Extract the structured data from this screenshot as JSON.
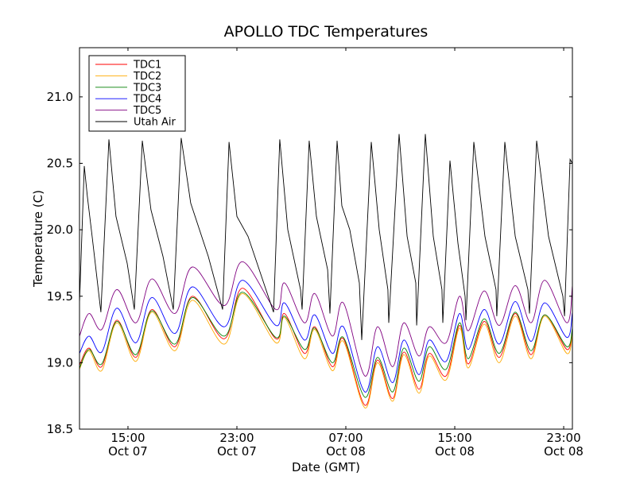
{
  "chart_data": {
    "type": "line",
    "title": "APOLLO TDC Temperatures",
    "xlabel": "Date (GMT)",
    "ylabel": "Temperature (C)",
    "x_units": "hours since Oct 07 00:00 GMT",
    "xlim": [
      11.44,
      47.64
    ],
    "ylim": [
      18.5,
      21.37
    ],
    "grid": false,
    "legend_position": "top-left",
    "yticks": [
      18.5,
      19.0,
      19.5,
      20.0,
      20.5,
      21.0
    ],
    "ytick_labels": [
      "18.5",
      "19.0",
      "19.5",
      "20.0",
      "20.5",
      "21.0"
    ],
    "xticks": [
      15,
      23,
      31,
      39,
      47
    ],
    "xtick_labels": [
      {
        "time": "15:00",
        "date": "Oct 07"
      },
      {
        "time": "23:00",
        "date": "Oct 07"
      },
      {
        "time": "07:00",
        "date": "Oct 08"
      },
      {
        "time": "15:00",
        "date": "Oct 08"
      },
      {
        "time": "23:00",
        "date": "Oct 08"
      }
    ],
    "tdc_x": [
      11.44,
      12.14,
      13.07,
      14.18,
      15.58,
      16.75,
      18.45,
      19.73,
      22.07,
      23.41,
      25.86,
      26.5,
      27.96,
      28.72,
      30.01,
      30.82,
      32.4,
      33.33,
      34.44,
      35.26,
      36.37,
      37.13,
      38.36,
      39.35,
      39.99,
      41.16,
      42.27,
      43.44,
      44.6,
      45.6,
      47.23,
      47.64
    ],
    "series": [
      {
        "name": "TDC1",
        "color": "#ff0000",
        "smooth": true,
        "values": [
          18.98,
          19.11,
          18.97,
          19.32,
          19.04,
          19.4,
          19.12,
          19.5,
          19.18,
          19.56,
          19.18,
          19.37,
          19.07,
          19.27,
          18.97,
          19.18,
          18.68,
          19.02,
          18.73,
          19.08,
          18.8,
          19.07,
          18.9,
          19.28,
          18.99,
          19.31,
          19.04,
          19.37,
          19.06,
          19.36,
          19.1,
          19.25
        ]
      },
      {
        "name": "TDC2",
        "color": "#ffaa00",
        "smooth": true,
        "values": [
          18.95,
          19.09,
          18.94,
          19.3,
          19.01,
          19.38,
          19.09,
          19.47,
          19.14,
          19.52,
          19.15,
          19.34,
          19.03,
          19.25,
          18.94,
          19.16,
          18.66,
          19.0,
          18.71,
          19.06,
          18.77,
          19.05,
          18.87,
          19.26,
          18.96,
          19.29,
          19.0,
          19.35,
          19.03,
          19.35,
          19.07,
          19.22
        ]
      },
      {
        "name": "TDC3",
        "color": "#008000",
        "smooth": true,
        "values": [
          18.96,
          19.1,
          18.99,
          19.31,
          19.06,
          19.39,
          19.14,
          19.49,
          19.2,
          19.53,
          19.19,
          19.35,
          19.1,
          19.26,
          19.0,
          19.19,
          18.74,
          19.04,
          18.78,
          19.11,
          18.86,
          19.12,
          18.95,
          19.3,
          19.03,
          19.33,
          19.07,
          19.38,
          19.09,
          19.36,
          19.12,
          19.26
        ]
      },
      {
        "name": "TDC4",
        "color": "#0000ff",
        "smooth": true,
        "values": [
          19.07,
          19.2,
          19.08,
          19.41,
          19.15,
          19.49,
          19.22,
          19.57,
          19.27,
          19.62,
          19.28,
          19.45,
          19.17,
          19.36,
          19.07,
          19.27,
          18.78,
          19.12,
          18.85,
          19.17,
          18.91,
          19.17,
          19.01,
          19.37,
          19.1,
          19.4,
          19.14,
          19.46,
          19.16,
          19.45,
          19.19,
          19.38
        ]
      },
      {
        "name": "TDC5",
        "color": "#800080",
        "smooth": true,
        "values": [
          19.2,
          19.37,
          19.25,
          19.55,
          19.3,
          19.63,
          19.37,
          19.72,
          19.43,
          19.76,
          19.4,
          19.6,
          19.3,
          19.52,
          19.2,
          19.45,
          18.9,
          19.27,
          18.97,
          19.3,
          19.05,
          19.27,
          19.15,
          19.5,
          19.24,
          19.54,
          19.28,
          19.58,
          19.3,
          19.62,
          19.3,
          19.58
        ]
      },
      {
        "name": "Utah Air",
        "color": "#000000",
        "smooth": false,
        "x": [
          11.44,
          11.79,
          12.02,
          12.37,
          13.01,
          13.6,
          14.12,
          14.94,
          15.47,
          16.05,
          16.69,
          17.57,
          18.33,
          18.91,
          19.61,
          20.9,
          21.95,
          22.42,
          23.0,
          23.82,
          25.69,
          26.15,
          26.74,
          27.67,
          27.79,
          28.31,
          28.84,
          29.66,
          29.83,
          30.36,
          30.71,
          31.29,
          31.99,
          32.17,
          32.87,
          33.45,
          34.09,
          34.15,
          34.91,
          35.5,
          36.14,
          36.2,
          36.84,
          37.42,
          38.06,
          38.12,
          38.65,
          39.23,
          39.76,
          39.82,
          40.4,
          41.22,
          42.03,
          42.09,
          42.68,
          43.44,
          44.37,
          44.49,
          45.01,
          45.89,
          46.94,
          47.06,
          47.47,
          47.64
        ],
        "values": [
          19.45,
          20.48,
          20.25,
          19.95,
          19.38,
          20.68,
          20.1,
          19.75,
          19.4,
          20.67,
          20.15,
          19.8,
          19.4,
          20.69,
          20.2,
          19.8,
          19.4,
          20.66,
          20.1,
          19.95,
          19.38,
          20.68,
          20.0,
          19.55,
          19.4,
          20.67,
          20.1,
          19.7,
          19.37,
          20.67,
          20.18,
          20.0,
          19.6,
          19.17,
          20.66,
          20.0,
          19.55,
          19.3,
          20.72,
          19.95,
          19.6,
          19.28,
          20.72,
          19.95,
          19.55,
          19.3,
          20.52,
          19.9,
          19.5,
          19.32,
          20.66,
          19.95,
          19.55,
          19.35,
          20.66,
          19.95,
          19.55,
          19.37,
          20.67,
          19.95,
          19.5,
          19.35,
          20.53,
          20.5
        ]
      }
    ]
  }
}
